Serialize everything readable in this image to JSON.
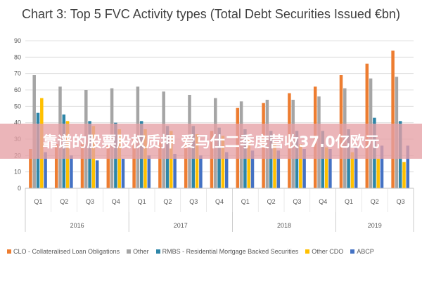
{
  "banner": {
    "text": "靠谱的股票股权质押 爱马仕二季度营收37.0亿欧元"
  },
  "chart_data": {
    "type": "bar",
    "title": "Chart 3: Top 5 FVC Activity types (Total Debt Securities Issued €bn)",
    "xlabel": "",
    "ylabel": "",
    "ylim": [
      0,
      90
    ],
    "yticks": [
      0,
      10,
      20,
      30,
      40,
      50,
      60,
      70,
      80,
      90
    ],
    "grid": true,
    "legend_position": "bottom",
    "categories": [
      "Q1",
      "Q2",
      "Q3",
      "Q4",
      "Q1",
      "Q2",
      "Q3",
      "Q4",
      "Q1",
      "Q2",
      "Q3",
      "Q4",
      "Q1",
      "Q2",
      "Q3"
    ],
    "year_groups": [
      {
        "label": "2016",
        "count": 4
      },
      {
        "label": "2017",
        "count": 4
      },
      {
        "label": "2018",
        "count": 4
      },
      {
        "label": "2019",
        "count": 3
      }
    ],
    "series": [
      {
        "name": "CLO - Collateralised Loan Obligations",
        "color": "#ED7D31",
        "values": [
          24,
          27,
          28,
          26,
          30,
          28,
          30,
          35,
          49,
          52,
          58,
          62,
          69,
          76,
          84
        ]
      },
      {
        "name": "Other",
        "color": "#A5A5A5",
        "values": [
          69,
          62,
          60,
          61,
          62,
          59,
          57,
          55,
          53,
          54,
          54,
          56,
          61,
          67,
          68
        ]
      },
      {
        "name": "RMBS - Residential Mortgage Backed Securities",
        "color": "#2E86A8",
        "values": [
          46,
          45,
          41,
          40,
          41,
          38,
          38,
          37,
          36,
          35,
          35,
          35,
          36,
          43,
          41
        ]
      },
      {
        "name": "Other CDO",
        "color": "#FFC000",
        "values": [
          55,
          41,
          38,
          36,
          36,
          35,
          33,
          32,
          30,
          28,
          27,
          25,
          22,
          18,
          16
        ]
      },
      {
        "name": "ABCP",
        "color": "#4472C4",
        "values": [
          22,
          20,
          17,
          18,
          20,
          21,
          20,
          22,
          23,
          23,
          24,
          24,
          25,
          26,
          26
        ]
      }
    ]
  }
}
